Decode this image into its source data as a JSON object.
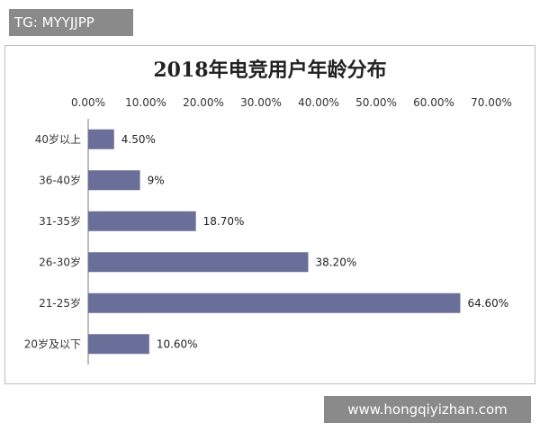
{
  "tag": "TG: MYYJJPP",
  "watermark": "www.hongqiyizhan.com",
  "chart_data": {
    "type": "bar",
    "orientation": "horizontal",
    "title": "2018年电竞用户年龄分布",
    "xlabel": "",
    "ylabel": "",
    "xlim": [
      0,
      70
    ],
    "x_ticks": [
      "0.00%",
      "10.00%",
      "20.00%",
      "30.00%",
      "40.00%",
      "50.00%",
      "60.00%",
      "70.00%"
    ],
    "x_axis_position": "top",
    "grid": false,
    "legend": "none",
    "bar_color": "#6a6f9a",
    "categories": [
      "40岁以上",
      "36-40岁",
      "31-35岁",
      "26-30岁",
      "21-25岁",
      "20岁及以下"
    ],
    "values": [
      4.5,
      9,
      18.7,
      38.2,
      64.6,
      10.6
    ],
    "data_labels": [
      "4.50%",
      "9%",
      "18.70%",
      "38.20%",
      "64.60%",
      "10.60%"
    ]
  }
}
